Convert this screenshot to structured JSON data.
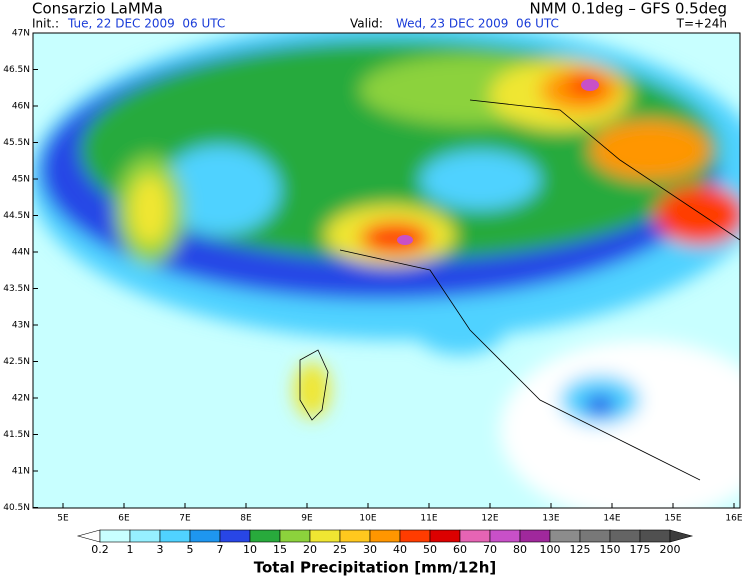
{
  "header": {
    "org": "Consarzio LaMMa",
    "model": "NMM 0.1deg – GFS 0.5deg",
    "init_label": "Init.:",
    "init": "Tue, 22 DEC 2009  06 UTC",
    "valid_label": "Valid:",
    "valid": "Wed, 23 DEC 2009  06 UTC",
    "lead": "T=+24h"
  },
  "map": {
    "lat_labels": [
      "47N",
      "46.5N",
      "46N",
      "45.5N",
      "45N",
      "44.5N",
      "44N",
      "43.5N",
      "43N",
      "42.5N",
      "42N",
      "41.5N",
      "41N",
      "40.5N"
    ],
    "lon_labels": [
      "5E",
      "6E",
      "7E",
      "8E",
      "9E",
      "10E",
      "11E",
      "12E",
      "13E",
      "14E",
      "15E",
      "16E"
    ]
  },
  "colorbar": {
    "labels": [
      "0.2",
      "1",
      "3",
      "5",
      "7",
      "10",
      "15",
      "20",
      "25",
      "30",
      "40",
      "50",
      "60",
      "70",
      "80",
      "100",
      "125",
      "150",
      "175",
      "200"
    ],
    "colors": [
      "#ffffff",
      "#c8ffff",
      "#96f0ff",
      "#50d2ff",
      "#1e96f0",
      "#2846e6",
      "#28aa3c",
      "#8cd23c",
      "#f0e632",
      "#ffc81e",
      "#ff9600",
      "#ff3c00",
      "#dc0000",
      "#e664b4",
      "#c850c8",
      "#a0289c",
      "#8c8c8c",
      "#787878",
      "#646464",
      "#505050",
      "#3c3c3c"
    ],
    "title": "Total Precipitation [mm/12h]"
  }
}
